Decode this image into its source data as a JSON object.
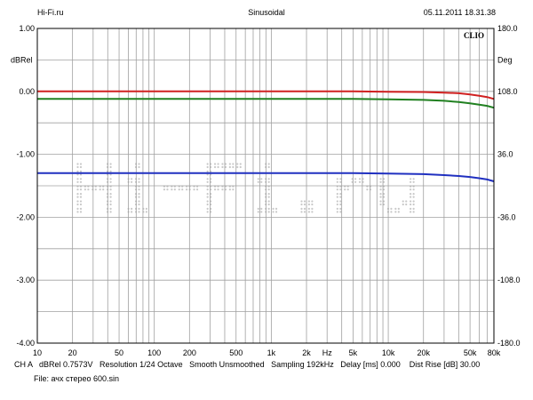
{
  "header": {
    "left": "Hi-Fi.ru",
    "center": "Sinusoidal",
    "right": "05.11.2011 18.31.38"
  },
  "brand": "CLIO",
  "footer": {
    "line1": "CH A   dBRel 0.7573V   Resolution 1/24 Octave   Smooth Unsmoothed   Sampling 192kHz   Delay [ms] 0.000    Dist Rise [dB] 30.00",
    "line2": "File: ачх стерео 600.sin"
  },
  "watermark": "Hi-Fi.ru",
  "colors": {
    "grid": "#a0a0a0",
    "red": "#d02020",
    "green": "#208020",
    "blue": "#2030c0",
    "watermark": "#c8c8c8"
  },
  "chart_data": {
    "type": "line",
    "x_scale": "log",
    "xlim": [
      10,
      80000
    ],
    "ylim": [
      -4.0,
      1.0
    ],
    "y2lim": [
      -180.0,
      180.0
    ],
    "ylabel": "dBRel",
    "y2label": "Deg",
    "x_unit_label": "Hz",
    "grid": true,
    "x_ticks": [
      {
        "v": 10,
        "label": "10"
      },
      {
        "v": 20,
        "label": "20"
      },
      {
        "v": 50,
        "label": "50"
      },
      {
        "v": 100,
        "label": "100"
      },
      {
        "v": 200,
        "label": "200"
      },
      {
        "v": 500,
        "label": "500"
      },
      {
        "v": 1000,
        "label": "1k"
      },
      {
        "v": 2000,
        "label": "2k"
      },
      {
        "v": 5000,
        "label": "5k"
      },
      {
        "v": 10000,
        "label": "10k"
      },
      {
        "v": 20000,
        "label": "20k"
      },
      {
        "v": 50000,
        "label": "50k"
      },
      {
        "v": 80000,
        "label": "80k"
      }
    ],
    "y_ticks": [
      {
        "v": 1.0,
        "label": "1.00"
      },
      {
        "v": 0.0,
        "label": "0.00"
      },
      {
        "v": -1.0,
        "label": "-1.00"
      },
      {
        "v": -2.0,
        "label": "-2.00"
      },
      {
        "v": -3.0,
        "label": "-3.00"
      },
      {
        "v": -4.0,
        "label": "-4.00"
      }
    ],
    "y2_ticks": [
      {
        "v": 180.0,
        "label": "180.0"
      },
      {
        "v": 108.0,
        "label": "108.0"
      },
      {
        "v": 36.0,
        "label": "36.0"
      },
      {
        "v": -36.0,
        "label": "-36.0"
      },
      {
        "v": -108.0,
        "label": "-108.0"
      },
      {
        "v": -180.0,
        "label": "-180.0"
      }
    ],
    "series": [
      {
        "color": "red",
        "x": [
          10,
          1000,
          5000,
          10000,
          20000,
          30000,
          40000,
          50000,
          60000,
          70000,
          80000
        ],
        "y": [
          0.0,
          0.0,
          0.0,
          -0.005,
          -0.01,
          -0.02,
          -0.03,
          -0.05,
          -0.07,
          -0.09,
          -0.12
        ]
      },
      {
        "color": "green",
        "x": [
          10,
          1000,
          5000,
          10000,
          20000,
          30000,
          40000,
          50000,
          60000,
          70000,
          80000
        ],
        "y": [
          -0.12,
          -0.12,
          -0.12,
          -0.125,
          -0.135,
          -0.15,
          -0.17,
          -0.19,
          -0.21,
          -0.23,
          -0.26
        ]
      },
      {
        "color": "blue",
        "x": [
          10,
          1000,
          5000,
          10000,
          20000,
          30000,
          40000,
          50000,
          60000,
          70000,
          80000
        ],
        "y": [
          -1.3,
          -1.3,
          -1.3,
          -1.305,
          -1.315,
          -1.33,
          -1.345,
          -1.36,
          -1.38,
          -1.4,
          -1.43
        ]
      }
    ]
  }
}
